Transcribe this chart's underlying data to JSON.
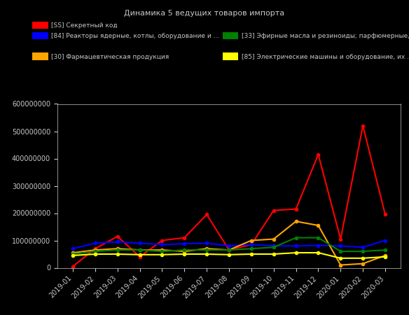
{
  "title": "Динамика 5 ведущих товаров импорта",
  "background_color": "#000000",
  "text_color": "#c8c8c8",
  "x_labels": [
    "2019-01",
    "2019-02",
    "2019-03",
    "2019-04",
    "2019-05",
    "2019-06",
    "2019-07",
    "2019-08",
    "2019-09",
    "2019-10",
    "2019-11",
    "2019-12",
    "2020-01",
    "2020-02",
    "2020-03"
  ],
  "series": [
    {
      "label": "[SS] Секретный код",
      "color": "#ff0000",
      "values": [
        5000000,
        70000000,
        115000000,
        40000000,
        100000000,
        110000000,
        195000000,
        65000000,
        85000000,
        210000000,
        215000000,
        415000000,
        105000000,
        520000000,
        195000000
      ]
    },
    {
      "label": "[84] Реакторы ядерные, котлы, оборудование и ...",
      "color": "#0000ff",
      "values": [
        70000000,
        90000000,
        95000000,
        90000000,
        85000000,
        88000000,
        90000000,
        80000000,
        85000000,
        80000000,
        80000000,
        82000000,
        80000000,
        75000000,
        100000000
      ]
    },
    {
      "label": "[30] Фармацевтическая продукция",
      "color": "#ffa500",
      "values": [
        55000000,
        65000000,
        70000000,
        65000000,
        65000000,
        60000000,
        70000000,
        65000000,
        100000000,
        105000000,
        170000000,
        155000000,
        10000000,
        15000000,
        45000000
      ]
    },
    {
      "label": "[33] Эфирные масла и резиноиды; парфюмерные, ...",
      "color": "#008000",
      "values": [
        50000000,
        60000000,
        65000000,
        65000000,
        60000000,
        65000000,
        65000000,
        65000000,
        70000000,
        75000000,
        110000000,
        110000000,
        60000000,
        60000000,
        65000000
      ]
    },
    {
      "label": "[85] Электрические машины и оборудование, их ...",
      "color": "#ffff00",
      "values": [
        45000000,
        50000000,
        50000000,
        48000000,
        48000000,
        50000000,
        50000000,
        48000000,
        50000000,
        50000000,
        55000000,
        55000000,
        35000000,
        35000000,
        40000000
      ]
    }
  ],
  "ylim": [
    0,
    600000000
  ],
  "yticks": [
    0,
    100000000,
    200000000,
    300000000,
    400000000,
    500000000,
    600000000
  ]
}
